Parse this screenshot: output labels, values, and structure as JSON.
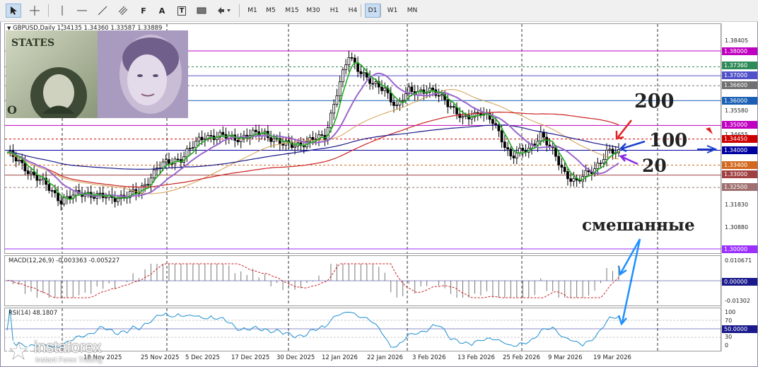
{
  "toolbar": {
    "timeframes": [
      "M1",
      "M5",
      "M15",
      "M30",
      "H1",
      "H4",
      "D1",
      "W1",
      "MN"
    ],
    "selected_timeframe": "D1"
  },
  "chart": {
    "symbol_label": "GBPUSD,Daily  1.34135 1.34360 1.33587 1.33889",
    "price_labels": [
      "1.38405",
      "1.35580",
      "1.34655",
      "1.31830",
      "1.30880"
    ],
    "price_tags": [
      {
        "text": "1.38000",
        "color": "#c000c0"
      },
      {
        "text": "1.37360",
        "color": "#2e8b57"
      },
      {
        "text": "1.37000",
        "color": "#5050c8"
      },
      {
        "text": "1.36600",
        "color": "#707070"
      },
      {
        "text": "1.36000",
        "color": "#1a5fb4"
      },
      {
        "text": "1.35000",
        "color": "#c000c0"
      },
      {
        "text": "1.34450",
        "color": "#cc0000"
      },
      {
        "text": "1.34000",
        "color": "#0000a0"
      },
      {
        "text": "1.33400",
        "color": "#d2691e"
      },
      {
        "text": "1.33000",
        "color": "#a04040"
      },
      {
        "text": "1.32500",
        "color": "#a07070"
      },
      {
        "text": "1.30000",
        "color": "#9b30ff"
      }
    ],
    "dates": [
      "18 Nov 2025",
      "25 Nov 2025",
      "5 Dec 2025",
      "17 Dec 2025",
      "30 Dec 2025",
      "12 Jan 2026",
      "22 Jan 2026",
      "3 Feb 2026",
      "13 Feb 2026",
      "25 Feb 2026",
      "9 Mar 2026",
      "19 Mar 2026"
    ]
  },
  "macd": {
    "label": "MACD(12,26,9) -0.003363 -0.005227",
    "axis_labels": [
      "0.010671",
      "-0.01302"
    ],
    "tag": "0.00000"
  },
  "rsi": {
    "label": "RSI(14) 48.1807",
    "axis_labels": [
      "100",
      "70",
      "30",
      "0"
    ],
    "tag": "50.0000",
    "value": 48.1807
  },
  "annotations": {
    "ma200": "200",
    "ma100": "100",
    "ma20": "20",
    "mixed": "смешанные"
  },
  "logo": {
    "brand": "instaforex",
    "tagline": "Instant Forex Trading"
  },
  "colors": {
    "candle": "#000000",
    "ma20": "#22aa22",
    "ma_purple": "#9966cc",
    "ma200": "#cc2222",
    "ma100": "#1a1a8c",
    "ma_orange": "#d2a050",
    "annot_red": "#e02020",
    "annot_blue": "#1a3fcc",
    "annot_purple": "#8a2be2",
    "annot_cyan": "#1e90ff"
  }
}
